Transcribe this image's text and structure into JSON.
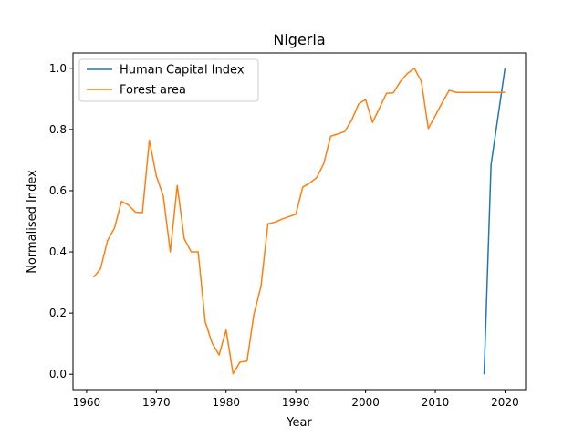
{
  "chart_data": {
    "type": "line",
    "title": "Nigeria",
    "xlabel": "Year",
    "ylabel": "Normalised Index",
    "xlim": [
      1958.05,
      2022.95
    ],
    "ylim": [
      -0.05,
      1.05
    ],
    "xticks": [
      1960,
      1970,
      1980,
      1990,
      2000,
      2010,
      2020
    ],
    "xtick_labels": [
      "1960",
      "1970",
      "1980",
      "1990",
      "2000",
      "2010",
      "2020"
    ],
    "yticks": [
      0.0,
      0.2,
      0.4,
      0.6,
      0.8,
      1.0
    ],
    "ytick_labels": [
      "0.0",
      "0.2",
      "0.4",
      "0.6",
      "0.8",
      "1.0"
    ],
    "grid": false,
    "legend_position": "upper-left",
    "series": [
      {
        "name": "Human Capital Index",
        "color": "#1f77b4",
        "x": [
          2017,
          2018,
          2020
        ],
        "y": [
          0.0,
          0.685,
          1.0
        ]
      },
      {
        "name": "Forest area",
        "color": "#ff7f0e",
        "x": [
          1961,
          1962,
          1963,
          1964,
          1965,
          1966,
          1967,
          1968,
          1969,
          1970,
          1971,
          1972,
          1973,
          1974,
          1975,
          1976,
          1977,
          1978,
          1979,
          1980,
          1981,
          1982,
          1983,
          1984,
          1985,
          1986,
          1987,
          1988,
          1989,
          1990,
          1991,
          1992,
          1993,
          1994,
          1995,
          1996,
          1997,
          1998,
          1999,
          2000,
          2001,
          2002,
          2003,
          2004,
          2005,
          2006,
          2007,
          2008,
          2009,
          2010,
          2011,
          2012,
          2013,
          2014,
          2015,
          2016,
          2017,
          2018,
          2019,
          2020
        ],
        "y": [
          0.317,
          0.345,
          0.437,
          0.478,
          0.565,
          0.553,
          0.53,
          0.528,
          0.765,
          0.648,
          0.582,
          0.4,
          0.617,
          0.443,
          0.4,
          0.4,
          0.172,
          0.102,
          0.063,
          0.145,
          0.002,
          0.04,
          0.043,
          0.197,
          0.287,
          0.492,
          0.497,
          0.507,
          0.515,
          0.523,
          0.612,
          0.625,
          0.643,
          0.688,
          0.778,
          0.785,
          0.793,
          0.83,
          0.883,
          0.898,
          0.823,
          0.87,
          0.918,
          0.92,
          0.957,
          0.983,
          1.0,
          0.957,
          0.803,
          0.845,
          0.888,
          0.928,
          0.921,
          0.921,
          0.921,
          0.921,
          0.921,
          0.921,
          0.921,
          0.921
        ]
      }
    ]
  }
}
